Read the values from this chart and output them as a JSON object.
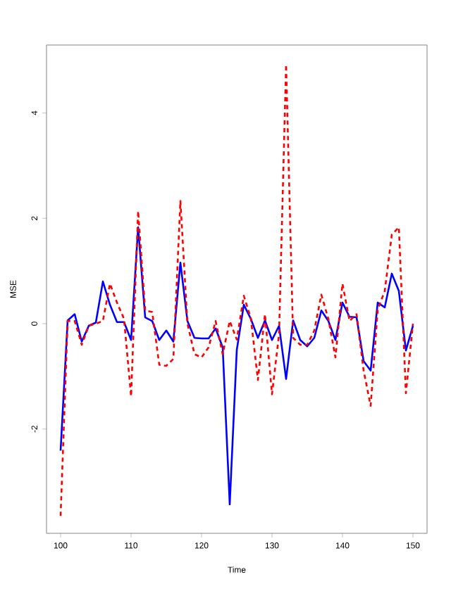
{
  "chart_data": {
    "type": "line",
    "xlabel": "Time",
    "ylabel": "MSE",
    "x": [
      100,
      101,
      102,
      103,
      104,
      105,
      106,
      107,
      108,
      109,
      110,
      111,
      112,
      113,
      114,
      115,
      116,
      117,
      118,
      119,
      120,
      121,
      122,
      123,
      124,
      125,
      126,
      127,
      128,
      129,
      130,
      131,
      132,
      133,
      134,
      135,
      136,
      137,
      138,
      139,
      140,
      141,
      142,
      143,
      144,
      145,
      146,
      147,
      148,
      149,
      150
    ],
    "series": [
      {
        "color": "#0000ff",
        "line_style": "solid",
        "values": [
          -2.41,
          0.06,
          0.18,
          -0.34,
          -0.04,
          0.02,
          0.8,
          0.36,
          0.03,
          0.03,
          -0.31,
          1.83,
          0.12,
          0.05,
          -0.31,
          -0.13,
          -0.34,
          1.16,
          0.05,
          -0.27,
          -0.28,
          -0.28,
          -0.09,
          -0.45,
          -3.43,
          -0.5,
          0.36,
          0.09,
          -0.27,
          0.06,
          -0.31,
          -0.04,
          -1.05,
          0.06,
          -0.31,
          -0.43,
          -0.27,
          0.25,
          0.05,
          -0.31,
          0.4,
          0.13,
          0.12,
          -0.71,
          -0.89,
          0.4,
          0.31,
          0.95,
          0.62,
          -0.51,
          -0.04
        ]
      },
      {
        "color": "#ff0000",
        "line_style": "dashed",
        "values": [
          -3.65,
          0.05,
          0.05,
          -0.4,
          -0.04,
          0.0,
          0.05,
          0.76,
          0.4,
          0.09,
          -1.38,
          2.14,
          0.25,
          0.22,
          -0.78,
          -0.8,
          -0.67,
          2.33,
          0.0,
          -0.58,
          -0.64,
          -0.45,
          0.05,
          -0.58,
          0.05,
          -0.3,
          0.53,
          0.1,
          -1.07,
          0.18,
          -1.34,
          -0.2,
          4.92,
          -0.27,
          -0.4,
          -0.4,
          -0.13,
          0.55,
          0.09,
          -0.64,
          0.76,
          0.05,
          0.18,
          -0.89,
          -1.56,
          0.27,
          0.62,
          1.69,
          1.83,
          -1.32,
          0.0
        ]
      }
    ],
    "xlim": [
      98,
      152
    ],
    "ylim": [
      -3.98,
      5.29
    ],
    "xticks": [
      100,
      110,
      120,
      130,
      140,
      150
    ],
    "yticks": [
      -2,
      0,
      2,
      4
    ],
    "grid": false,
    "marker": "none"
  }
}
